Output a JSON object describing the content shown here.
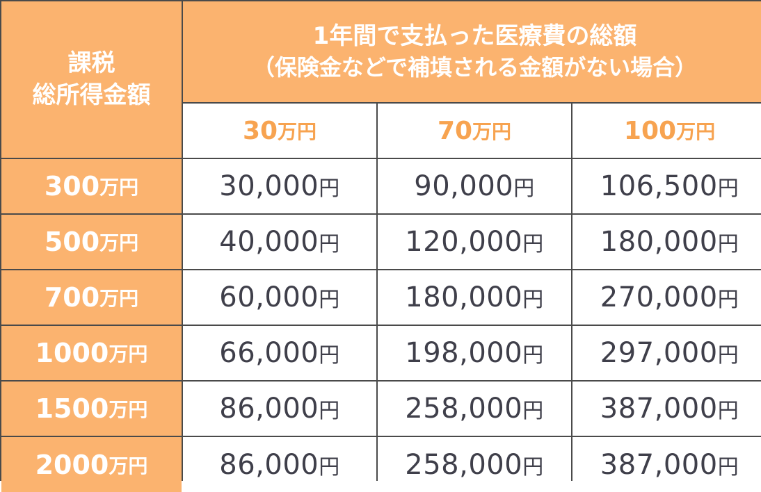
{
  "corner": {
    "line1": "課税",
    "line2": "総所得金額"
  },
  "main_header": {
    "line1": "1年間で支払った医療費の総額",
    "line2": "（保険金などで補填される金額がない場合）"
  },
  "unit": "万円",
  "yen": "円",
  "columns": [
    {
      "amount": "30"
    },
    {
      "amount": "70"
    },
    {
      "amount": "100"
    }
  ],
  "rows": [
    {
      "income": "300",
      "values": [
        "30,000",
        "90,000",
        "106,500"
      ]
    },
    {
      "income": "500",
      "values": [
        "40,000",
        "120,000",
        "180,000"
      ]
    },
    {
      "income": "700",
      "values": [
        "60,000",
        "180,000",
        "270,000"
      ]
    },
    {
      "income": "1000",
      "values": [
        "66,000",
        "198,000",
        "297,000"
      ]
    },
    {
      "income": "1500",
      "values": [
        "86,000",
        "258,000",
        "387,000"
      ]
    },
    {
      "income": "2000",
      "values": [
        "86,000",
        "258,000",
        "387,000"
      ]
    }
  ],
  "colors": {
    "header_orange": "#fbb36f",
    "accent_text": "#f7a350",
    "value_text": "#3f3f4a",
    "border": "#4a4a4a"
  }
}
